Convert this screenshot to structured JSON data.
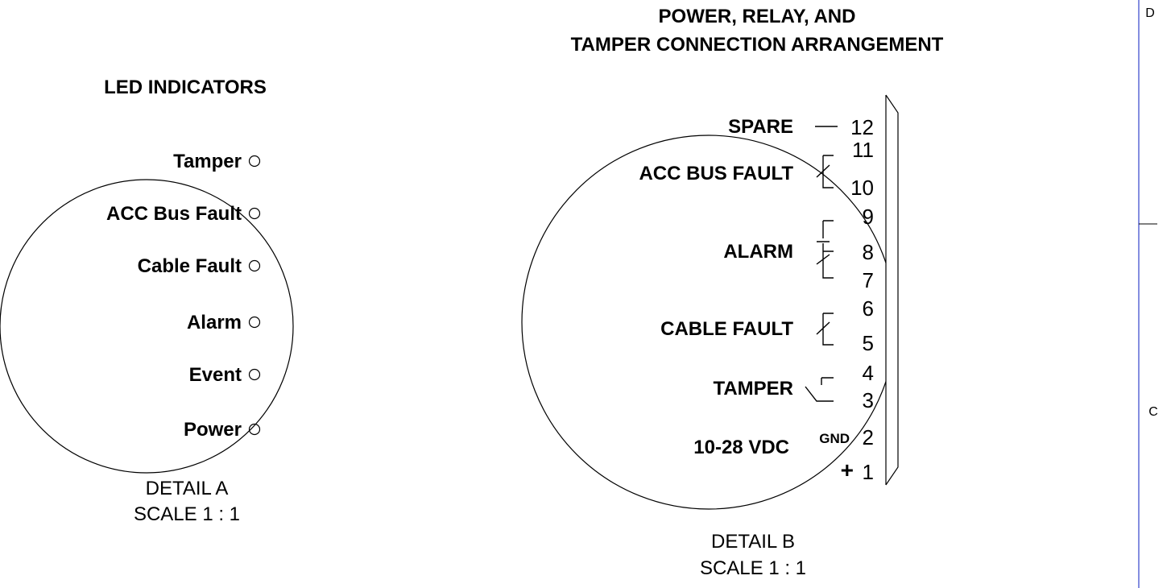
{
  "led_detail": {
    "title": "LED INDICATORS",
    "indicators": [
      "Tamper",
      "ACC Bus Fault",
      "Cable Fault",
      "Alarm",
      "Event",
      "Power"
    ],
    "caption": "DETAIL A",
    "scale": "SCALE 1 : 1"
  },
  "connection_detail": {
    "title_lines": [
      "POWER, RELAY, AND",
      "TAMPER CONNECTION ARRANGEMENT"
    ],
    "groups": [
      {
        "label": "SPARE",
        "terminals": [
          "12"
        ]
      },
      {
        "label": "ACC BUS FAULT",
        "terminals": [
          "11",
          "10"
        ]
      },
      {
        "label": "ALARM",
        "terminals": [
          "9",
          "8",
          "7"
        ]
      },
      {
        "label": "CABLE FAULT",
        "terminals": [
          "6",
          "5"
        ]
      },
      {
        "label": "TAMPER",
        "terminals": [
          "4",
          "3"
        ]
      },
      {
        "label": "10-28 VDC",
        "terminals": [
          "2",
          "1"
        ],
        "terminal_prefixes": [
          "GND",
          "+"
        ]
      }
    ],
    "caption": "DETAIL B",
    "scale": "SCALE 1 : 1"
  },
  "border": {
    "zones": [
      "D",
      "C"
    ]
  }
}
